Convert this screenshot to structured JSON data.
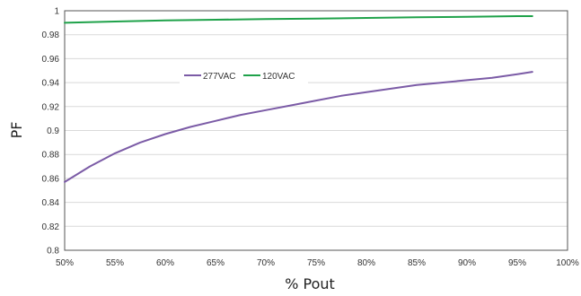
{
  "chart_data": {
    "type": "line",
    "title": "",
    "xlabel": "% Pout",
    "ylabel": "PF",
    "x_ticks": [
      "50%",
      "55%",
      "60%",
      "65%",
      "70%",
      "75%",
      "80%",
      "85%",
      "90%",
      "95%",
      "100%"
    ],
    "y_ticks": [
      "0.8",
      "0.82",
      "0.84",
      "0.86",
      "0.88",
      "0.9",
      "0.92",
      "0.94",
      "0.96",
      "0.98",
      "1"
    ],
    "xlim": [
      50,
      100
    ],
    "ylim": [
      0.8,
      1.0
    ],
    "grid": "horizontal",
    "legend": "inside-top-left",
    "series": [
      {
        "name": "277VAC",
        "color": "#7B5BA6",
        "x": [
          50,
          52.5,
          55,
          57.5,
          60,
          62.5,
          65,
          67.5,
          70,
          72.5,
          75,
          77.5,
          80,
          82.5,
          85,
          87.5,
          90,
          92.5,
          95,
          96.5
        ],
        "y": [
          0.857,
          0.87,
          0.881,
          0.89,
          0.897,
          0.903,
          0.908,
          0.913,
          0.917,
          0.921,
          0.925,
          0.929,
          0.932,
          0.935,
          0.938,
          0.94,
          0.942,
          0.944,
          0.947,
          0.949
        ]
      },
      {
        "name": "120VAC",
        "color": "#1FA24A",
        "x": [
          50,
          55,
          60,
          65,
          70,
          75,
          80,
          85,
          90,
          95,
          96.5
        ],
        "y": [
          0.99,
          0.991,
          0.992,
          0.9925,
          0.993,
          0.9935,
          0.994,
          0.9945,
          0.995,
          0.9955,
          0.9955
        ]
      }
    ]
  }
}
